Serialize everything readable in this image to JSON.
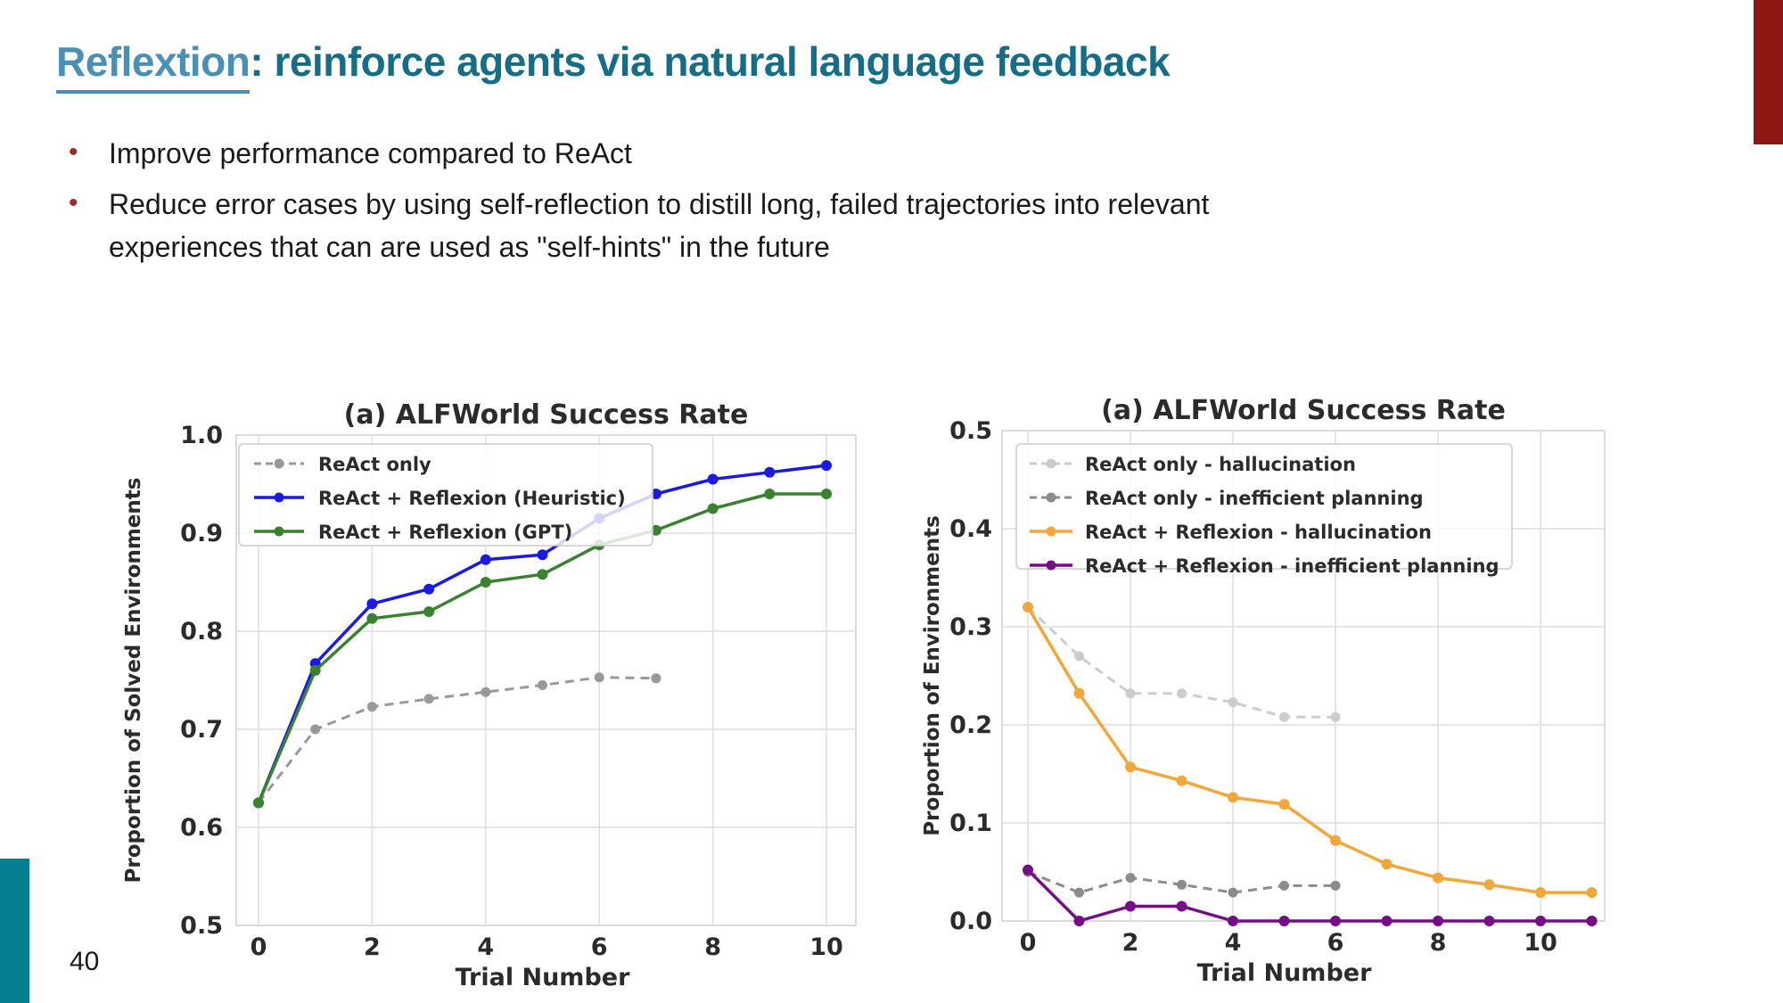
{
  "slide": {
    "title": {
      "highlight": "Reflextion",
      "rest": ": reinforce agents via natural language feedback"
    },
    "bullets": [
      "Improve performance compared to ReAct",
      "Reduce error cases by using self-reflection to distill long, failed trajectories into relevant experiences that can are used as \"self-hints\" in the future"
    ],
    "bullet_glyph": "•",
    "page_number": "40",
    "colors": {
      "title_highlight": "#4a90b5",
      "title_rest": "#166d85",
      "bullet_dot": "#9e2b23",
      "top_right_bar": "#8e1713",
      "bottom_left_bar": "#067f92"
    }
  },
  "chart_data": [
    {
      "type": "line",
      "title": "(a) ALFWorld Success Rate",
      "xlabel": "Trial Number",
      "ylabel": "Proportion of Solved Environments",
      "xlim": [
        -0.5,
        10.5
      ],
      "ylim": [
        0.5,
        1.0
      ],
      "xticks": [
        0,
        2,
        4,
        6,
        8,
        10
      ],
      "xtick_labels": [
        "0",
        "2",
        "4",
        "6",
        "8",
        "10"
      ],
      "yticks": [
        0.5,
        0.6,
        0.7,
        0.8,
        0.9,
        1.0
      ],
      "ytick_labels": [
        "0.5",
        "0.6",
        "0.7",
        "0.8",
        "0.9",
        "1.0"
      ],
      "grid": true,
      "legend_position": "upper left",
      "grid_color": "#dedede",
      "spine_color": "#cfcfcf",
      "series": [
        {
          "name": "ReAct only",
          "color": "#999999",
          "style": "dashed",
          "x": [
            0,
            1,
            2,
            3,
            4,
            5,
            6,
            7
          ],
          "values": [
            0.625,
            0.7,
            0.723,
            0.731,
            0.738,
            0.745,
            0.753,
            0.752
          ]
        },
        {
          "name": "ReAct + Reflexion (Heuristic)",
          "color": "#1a1ae0",
          "style": "solid",
          "x": [
            0,
            1,
            2,
            3,
            4,
            5,
            6,
            7,
            8,
            9,
            10
          ],
          "values": [
            0.625,
            0.767,
            0.828,
            0.843,
            0.873,
            0.878,
            0.915,
            0.94,
            0.955,
            0.962,
            0.969
          ]
        },
        {
          "name": "ReAct + Reflexion (GPT)",
          "color": "#3b8132",
          "style": "solid",
          "x": [
            0,
            1,
            2,
            3,
            4,
            5,
            6,
            7,
            8,
            9,
            10
          ],
          "values": [
            0.625,
            0.76,
            0.813,
            0.82,
            0.85,
            0.858,
            0.888,
            0.903,
            0.925,
            0.94,
            0.94
          ]
        }
      ]
    },
    {
      "type": "line",
      "title": "(a) ALFWorld Success Rate",
      "xlabel": "Trial Number",
      "ylabel": "Proportion of Environments",
      "xlim": [
        -0.5,
        11.5
      ],
      "ylim": [
        0.0,
        0.5
      ],
      "xticks": [
        0,
        2,
        4,
        6,
        8,
        10
      ],
      "xtick_labels": [
        "0",
        "2",
        "4",
        "6",
        "8",
        "10"
      ],
      "yticks": [
        0.0,
        0.1,
        0.2,
        0.3,
        0.4,
        0.5
      ],
      "ytick_labels": [
        "0.0",
        "0.1",
        "0.2",
        "0.3",
        "0.4",
        "0.5"
      ],
      "grid": true,
      "legend_position": "upper left",
      "grid_color": "#dedede",
      "spine_color": "#cfcfcf",
      "series": [
        {
          "name": "ReAct only - hallucination",
          "color": "#cccccc",
          "style": "dashed",
          "x": [
            0,
            1,
            2,
            3,
            4,
            5,
            6
          ],
          "values": [
            0.32,
            0.27,
            0.232,
            0.232,
            0.223,
            0.208,
            0.208
          ]
        },
        {
          "name": "ReAct only - inefficient planning",
          "color": "#8c8c8c",
          "style": "dashed",
          "x": [
            0,
            1,
            2,
            3,
            4,
            5,
            6
          ],
          "values": [
            0.05,
            0.029,
            0.044,
            0.037,
            0.029,
            0.036,
            0.036
          ]
        },
        {
          "name": "ReAct + Reflexion - hallucination",
          "color": "#f2a63c",
          "style": "solid",
          "x": [
            0,
            1,
            2,
            3,
            4,
            5,
            6,
            7,
            8,
            9,
            10,
            11
          ],
          "values": [
            0.32,
            0.232,
            0.157,
            0.143,
            0.126,
            0.119,
            0.082,
            0.058,
            0.044,
            0.037,
            0.029,
            0.029
          ]
        },
        {
          "name": "ReAct + Reflexion - inefficient planning",
          "color": "#750d86",
          "style": "solid",
          "x": [
            0,
            1,
            2,
            3,
            4,
            5,
            6,
            7,
            8,
            9,
            10,
            11
          ],
          "values": [
            0.052,
            0.0,
            0.015,
            0.015,
            0.0,
            0.0,
            0.0,
            0.0,
            0.0,
            0.0,
            0.0,
            0.0
          ]
        }
      ]
    }
  ]
}
